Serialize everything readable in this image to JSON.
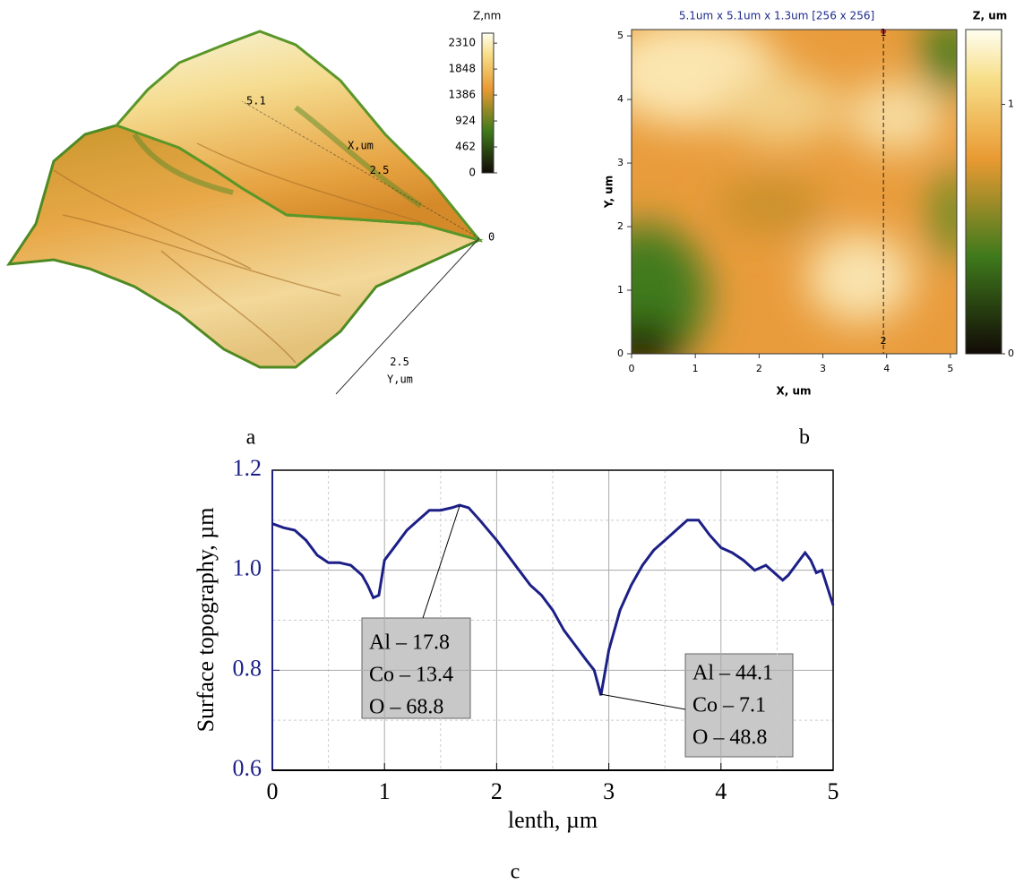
{
  "panel_labels": [
    "a",
    "b",
    "c"
  ],
  "chart_data": [
    {
      "type": "surface3d",
      "zlabel": "Z,nm",
      "zlim": [
        0,
        2440
      ],
      "zticks": [
        0,
        462,
        924,
        1386,
        1848,
        2310
      ],
      "x_label": "X,um",
      "xlim": [
        0,
        5.1
      ],
      "xticks": [
        0,
        2.5,
        5.1
      ],
      "y_label": "Y,um",
      "yticks": [
        2.5
      ]
    },
    {
      "type": "heatmap",
      "title": "5.1um x 5.1um x 1.3um [256 x 256]",
      "zlabel": "Z, um",
      "zlim": [
        0,
        1.3
      ],
      "zticks": [
        0,
        1
      ],
      "xlabel": "X, um",
      "ylabel": "Y, um",
      "xlim": [
        0,
        5.1
      ],
      "ylim": [
        0,
        5.1
      ],
      "xticks": [
        0,
        1,
        2,
        3,
        4,
        5
      ],
      "yticks": [
        0,
        1,
        2,
        3,
        4,
        5
      ],
      "profile_line": {
        "x": 3.95,
        "labels": [
          "1",
          "2"
        ]
      }
    },
    {
      "type": "line",
      "xlabel": "lenth, µm",
      "ylabel": "Surface topography, µm",
      "color": "#1c1f86",
      "xlim": [
        0,
        5
      ],
      "ylim": [
        0.6,
        1.2
      ],
      "xticks": [
        0,
        1,
        2,
        3,
        4,
        5
      ],
      "yticks": [
        0.6,
        0.8,
        {
          "value": 1.0,
          "label": "1.0"
        },
        1.2
      ],
      "grid": true,
      "x": [
        0,
        0.1,
        0.2,
        0.3,
        0.4,
        0.5,
        0.6,
        0.7,
        0.8,
        0.85,
        0.9,
        0.95,
        1.0,
        1.1,
        1.2,
        1.3,
        1.4,
        1.5,
        1.6,
        1.67,
        1.75,
        1.85,
        2.0,
        2.1,
        2.2,
        2.3,
        2.4,
        2.5,
        2.6,
        2.7,
        2.8,
        2.87,
        2.93,
        3.0,
        3.1,
        3.2,
        3.3,
        3.4,
        3.5,
        3.6,
        3.7,
        3.8,
        3.9,
        4.0,
        4.1,
        4.2,
        4.3,
        4.4,
        4.5,
        4.55,
        4.6,
        4.7,
        4.75,
        4.8,
        4.85,
        4.9,
        5.0
      ],
      "values": [
        1.093,
        1.085,
        1.08,
        1.06,
        1.03,
        1.015,
        1.015,
        1.01,
        0.99,
        0.97,
        0.945,
        0.95,
        1.02,
        1.05,
        1.08,
        1.1,
        1.12,
        1.12,
        1.125,
        1.13,
        1.125,
        1.1,
        1.06,
        1.03,
        1.0,
        0.97,
        0.95,
        0.92,
        0.88,
        0.85,
        0.82,
        0.8,
        0.75,
        0.84,
        0.92,
        0.97,
        1.01,
        1.04,
        1.06,
        1.08,
        1.1,
        1.1,
        1.07,
        1.045,
        1.035,
        1.02,
        1.0,
        1.01,
        0.99,
        0.98,
        0.99,
        1.02,
        1.035,
        1.02,
        0.995,
        1.0,
        0.93
      ],
      "annotations": [
        [
          "Al – 17.8",
          "Co – 13.4",
          "O – 68.8"
        ],
        [
          "Al – 44.1",
          "Co – 7.1",
          "O – 48.8"
        ]
      ]
    }
  ]
}
